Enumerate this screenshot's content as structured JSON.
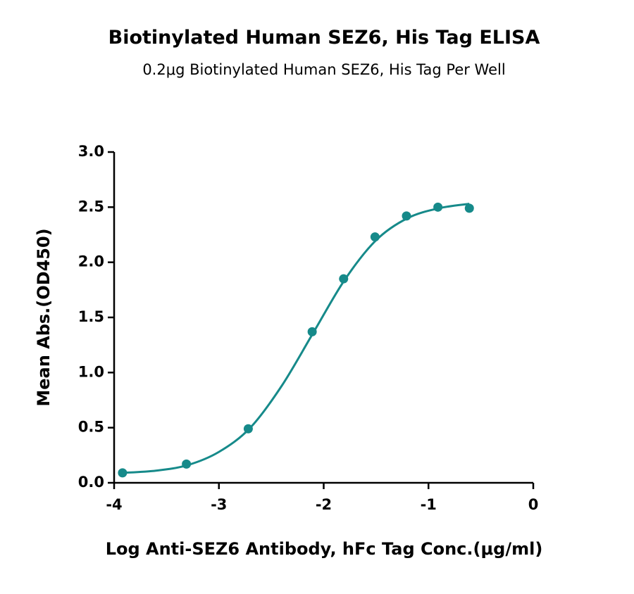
{
  "chart_data": {
    "type": "scatter",
    "title": "Biotinylated Human SEZ6, His Tag ELISA",
    "subtitle": "0.2μg Biotinylated Human SEZ6, His Tag Per Well",
    "x_label": "Log Anti-SEZ6 Antibody, hFc Tag Conc.(μg/ml)",
    "y_label": "Mean Abs.(OD450)",
    "color": "#168a8a",
    "x": [
      -3.92,
      -3.31,
      -2.72,
      -2.11,
      -1.81,
      -1.51,
      -1.21,
      -0.91,
      -0.61
    ],
    "values": [
      0.09,
      0.17,
      0.49,
      1.37,
      1.85,
      2.23,
      2.42,
      2.5,
      2.49
    ],
    "fit": {
      "x": [
        -3.92,
        -3.6,
        -3.3,
        -3.0,
        -2.7,
        -2.4,
        -2.1,
        -1.8,
        -1.5,
        -1.2,
        -0.9,
        -0.61
      ],
      "values": [
        0.09,
        0.11,
        0.16,
        0.28,
        0.5,
        0.88,
        1.36,
        1.84,
        2.2,
        2.4,
        2.49,
        2.53
      ]
    },
    "xlim": [
      -4,
      0
    ],
    "xticks": [
      -4,
      -3,
      -2,
      -1,
      0
    ],
    "ylim": [
      0,
      3
    ],
    "yticks": [
      {
        "value": 0,
        "label": "0.0"
      },
      0.5,
      {
        "value": 1,
        "label": "1.0"
      },
      1.5,
      {
        "value": 2,
        "label": "2.0"
      },
      2.5,
      {
        "value": 3,
        "label": "3.0"
      }
    ]
  }
}
